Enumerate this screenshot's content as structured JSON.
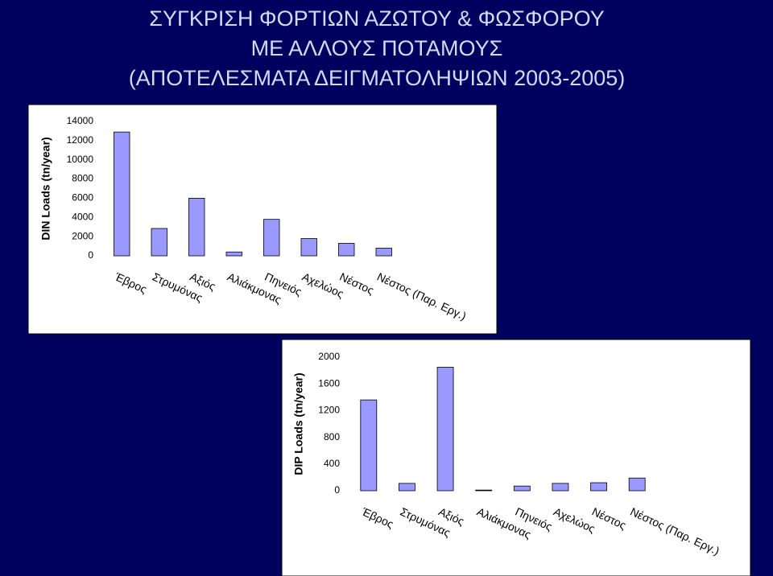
{
  "title": [
    "ΣΥΓΚΡΙΣΗ ΦΟΡΤΙΩΝ ΑΖΩΤΟΥ & ΦΩΣΦΟΡΟΥ",
    "ΜΕ ΑΛΛΟΥΣ ΠΟΤΑΜΟΥΣ",
    "(ΑΠΟΤΕΛΕΣΜΑΤΑ ΔΕΙΓΜΑΤΟΛΗΨΙΩΝ 2003-2005)"
  ],
  "chart_data": [
    {
      "type": "bar",
      "y_label": "DIN Loads (tn/year)",
      "categories": [
        "Έβρος",
        "Στρυμόνας",
        "Αξιός",
        "Αλιάκμονας",
        "Πηνειός",
        "Αχελώος",
        "Νέστος",
        "Νέστος (Παρ. Εργ.)"
      ],
      "values": [
        12900,
        2850,
        6000,
        400,
        3800,
        1800,
        1300,
        800
      ],
      "color": "#9999ff",
      "ylim": [
        0,
        14000
      ],
      "yticks": [
        0,
        2000,
        4000,
        6000,
        8000,
        10000,
        12000,
        14000
      ]
    },
    {
      "type": "bar",
      "y_label": "DIP Loads (tn/year)",
      "categories": [
        "Έβρος",
        "Στρυμόνας",
        "Αξιός",
        "Αλιάκμονας",
        "Πηνειός",
        "Αχελώος",
        "Νέστος",
        "Νέστος (Παρ. Εργ.)"
      ],
      "values": [
        1360,
        110,
        1850,
        10,
        70,
        110,
        120,
        190
      ],
      "color": "#9999ff",
      "ylim": [
        0,
        2000
      ],
      "yticks": [
        0,
        400,
        800,
        1200,
        1600,
        2000
      ]
    }
  ]
}
